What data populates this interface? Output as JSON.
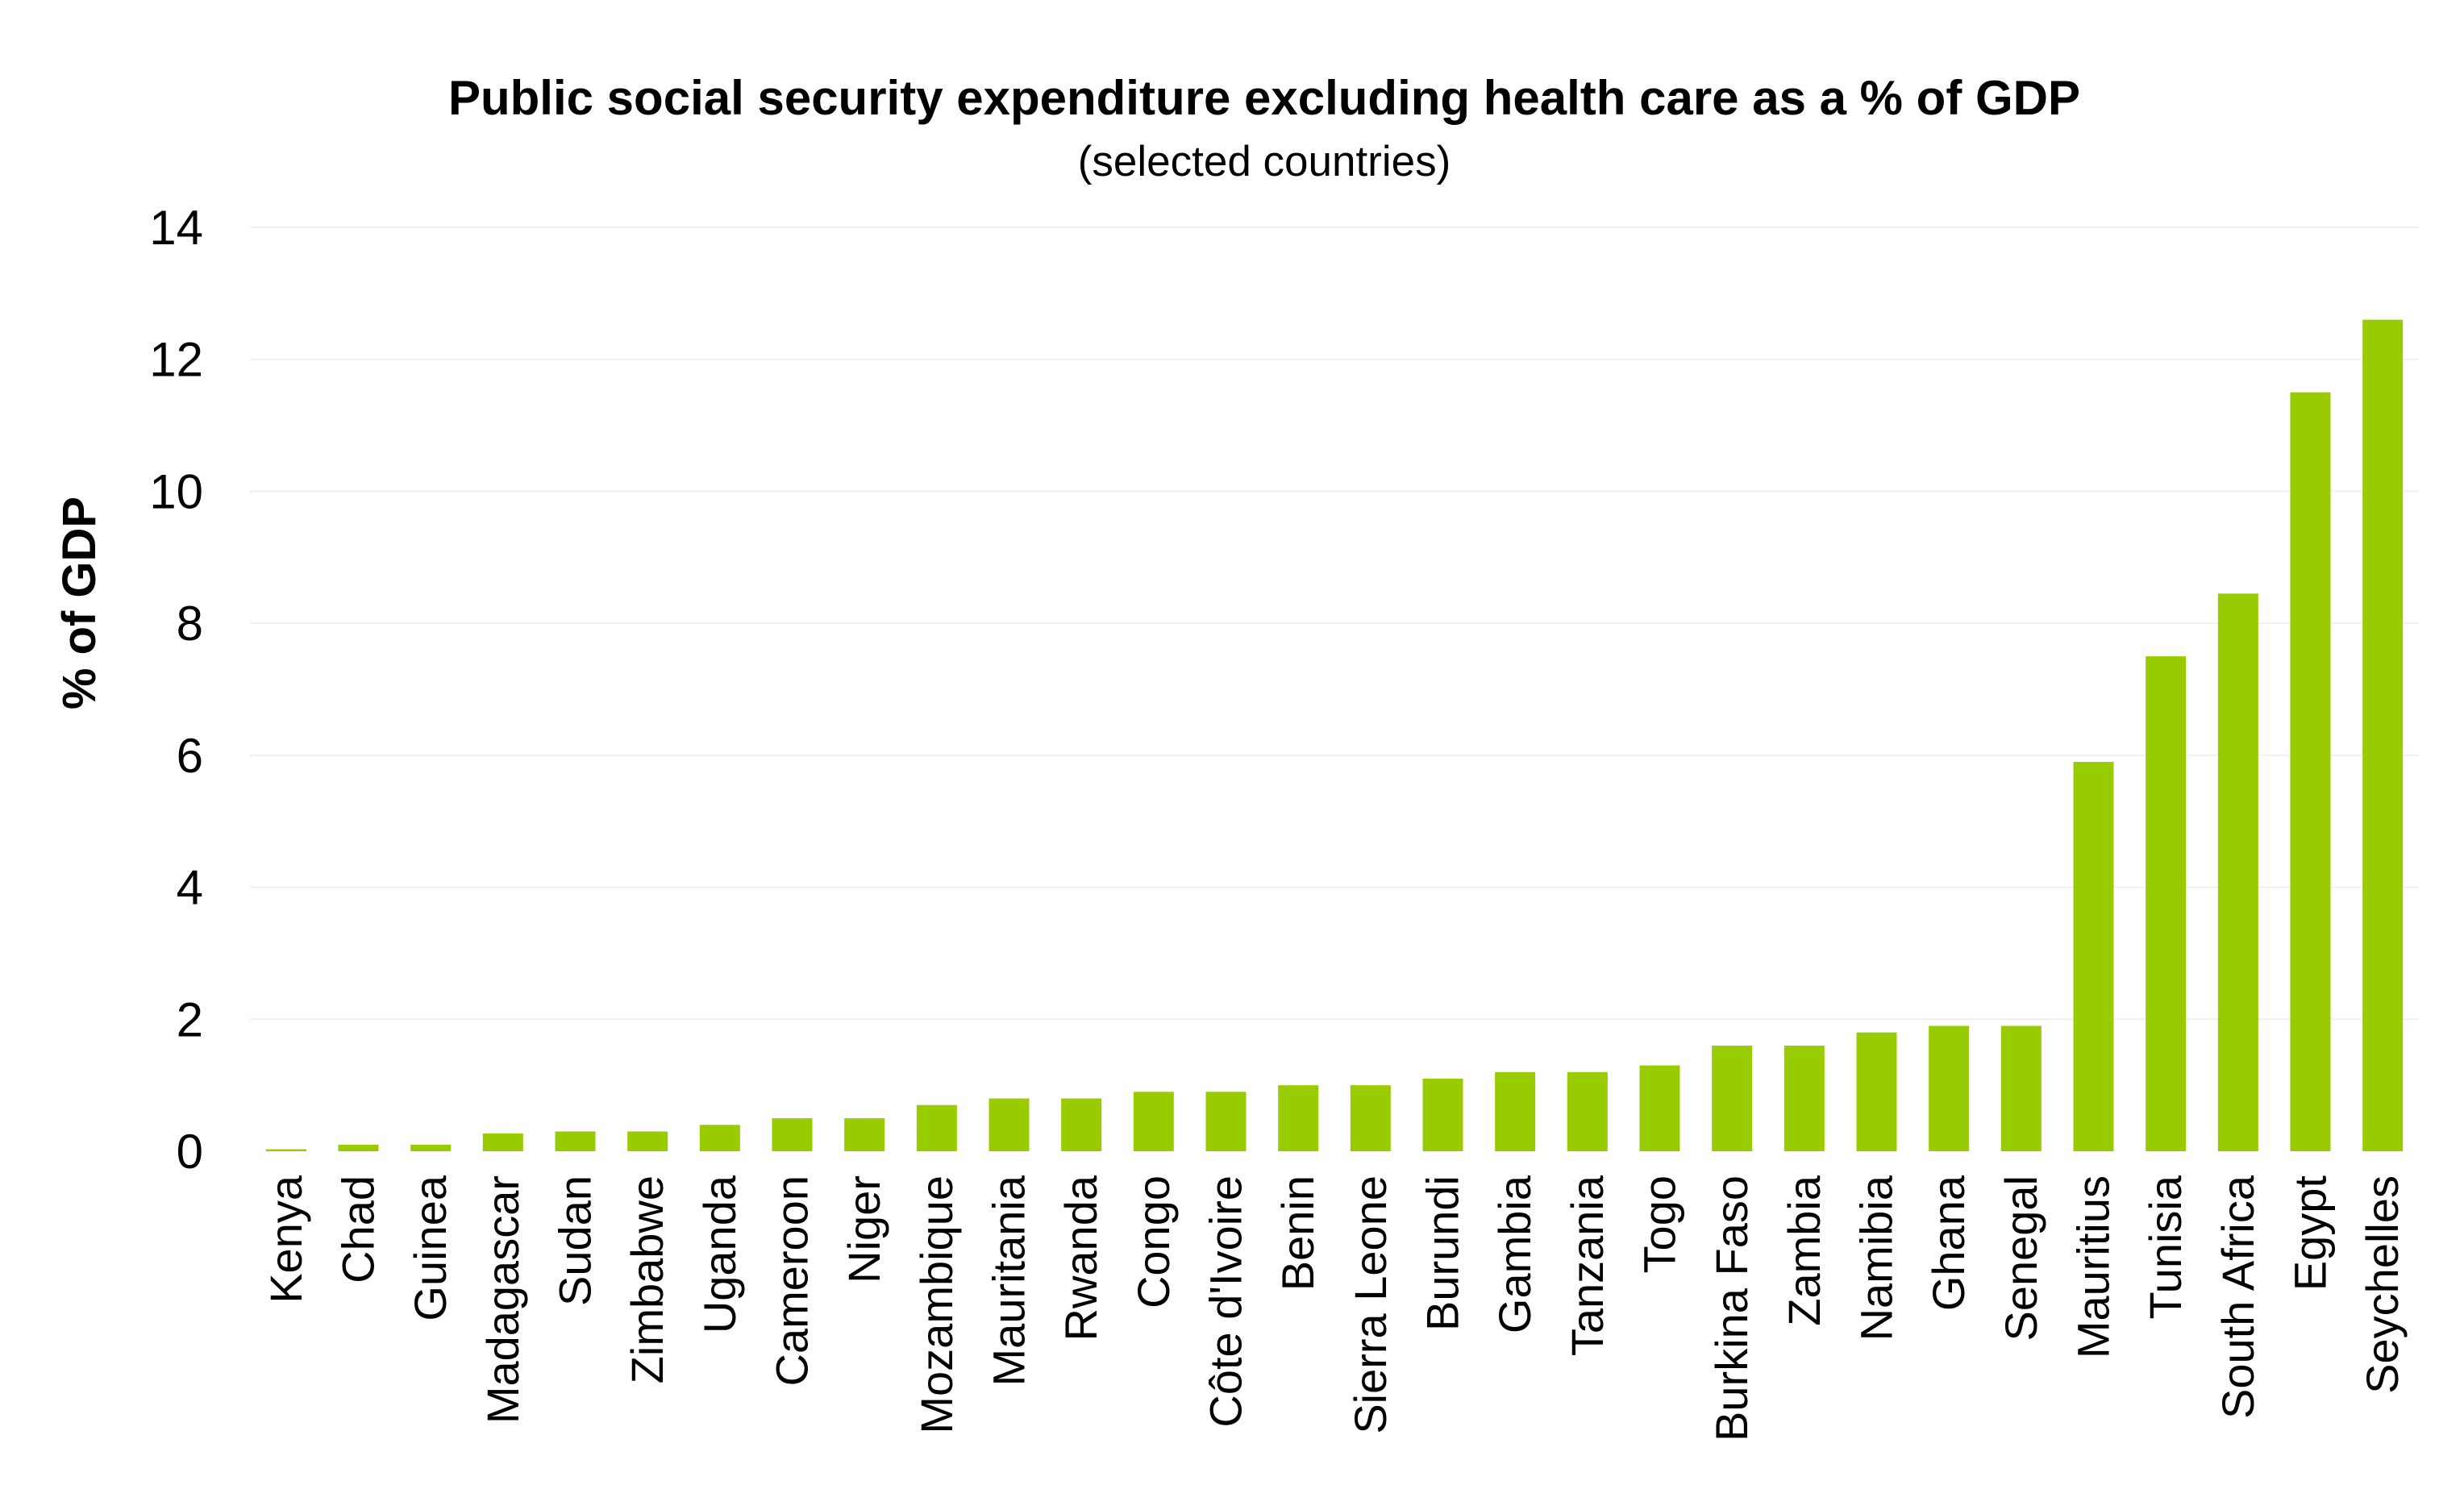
{
  "chart_data": {
    "type": "bar",
    "title": "Public social security expenditure excluding health care as a % of GDP",
    "subtitle": "(selected countries)",
    "xlabel": "",
    "ylabel": "% of GDP",
    "ylim": [
      0,
      14
    ],
    "yticks": [
      "0",
      "2",
      "4",
      "6",
      "8",
      "10",
      "12",
      "14"
    ],
    "grid": true,
    "legend": "none",
    "bar_color": "#99cc00",
    "categories": [
      "Kenya",
      "Chad",
      "Guinea",
      "Madagascar",
      "Sudan",
      "Zimbabwe",
      "Uganda",
      "Cameroon",
      "Niger",
      "Mozambique",
      "Mauritania",
      "Rwanda",
      "Congo",
      "Côte d'Ivoire",
      "Benin",
      "Sierra Leone",
      "Burundi",
      "Gambia",
      "Tanzania",
      "Togo",
      "Burkina Faso",
      "Zambia",
      "Namibia",
      "Ghana",
      "Senegal",
      "Mauritius",
      "Tunisia",
      "South Africa",
      "Egypt",
      "Seychelles"
    ],
    "values": [
      0.03,
      0.1,
      0.1,
      0.27,
      0.3,
      0.3,
      0.4,
      0.5,
      0.5,
      0.7,
      0.8,
      0.8,
      0.9,
      0.9,
      1.0,
      1.0,
      1.1,
      1.2,
      1.2,
      1.3,
      1.6,
      1.6,
      1.8,
      1.9,
      1.9,
      5.9,
      7.5,
      8.45,
      11.5,
      12.6
    ]
  }
}
